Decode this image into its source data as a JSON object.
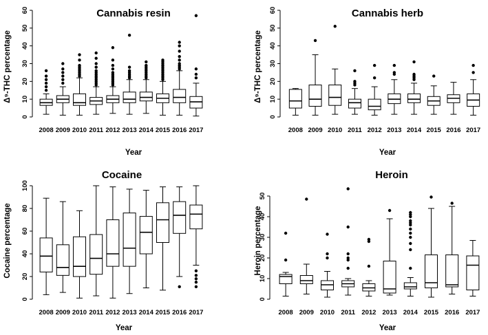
{
  "chart_data": [
    {
      "type": "box",
      "title": "Cannabis resin",
      "xlabel": "Year",
      "ylabel": "Δ⁹-THC percentage",
      "ylim": [
        0,
        60
      ],
      "yticks": [
        0,
        10,
        20,
        30,
        40,
        50,
        60
      ],
      "categories": [
        "2008",
        "2009",
        "2010",
        "2011",
        "2012",
        "2013",
        "2014",
        "2015",
        "2016",
        "2017"
      ],
      "boxes": [
        {
          "min": 1.5,
          "q1": 6.5,
          "median": 8,
          "q3": 10,
          "max": 13,
          "outliers": [
            15,
            17,
            19,
            21,
            23,
            26
          ]
        },
        {
          "min": 1,
          "q1": 8,
          "median": 10,
          "q3": 12,
          "max": 17,
          "outliers": [
            19,
            21,
            23,
            25,
            27,
            30
          ]
        },
        {
          "min": 1,
          "q1": 6.5,
          "median": 8,
          "q3": 13,
          "max": 22,
          "outliers": [
            23,
            24,
            25,
            26,
            27,
            28,
            29,
            32,
            35
          ]
        },
        {
          "min": 1.5,
          "q1": 7,
          "median": 9,
          "q3": 11,
          "max": 17,
          "outliers": [
            18,
            19,
            20,
            21,
            22,
            23,
            24,
            25,
            26,
            28,
            30,
            33,
            36
          ]
        },
        {
          "min": 2,
          "q1": 8,
          "median": 10,
          "q3": 12,
          "max": 17,
          "outliers": [
            18,
            19,
            20,
            21,
            22,
            23,
            24,
            25,
            27,
            29,
            32,
            39
          ]
        },
        {
          "min": 1.5,
          "q1": 8,
          "median": 10,
          "q3": 14,
          "max": 21,
          "outliers": [
            22,
            23,
            24,
            25,
            26,
            28,
            46
          ]
        },
        {
          "min": 2,
          "q1": 9,
          "median": 11,
          "q3": 14,
          "max": 21,
          "outliers": [
            22,
            23,
            24,
            25,
            26,
            27,
            28,
            29,
            31
          ]
        },
        {
          "min": 1,
          "q1": 8,
          "median": 10.5,
          "q3": 13,
          "max": 20,
          "outliers": [
            21,
            22,
            23,
            24,
            25,
            26,
            27,
            28,
            29,
            30,
            31,
            32
          ]
        },
        {
          "min": 1,
          "q1": 8,
          "median": 11,
          "q3": 15.5,
          "max": 26,
          "outliers": [
            27,
            28,
            29,
            30,
            32,
            34,
            37,
            40,
            42
          ]
        },
        {
          "min": 0.5,
          "q1": 5,
          "median": 8.5,
          "q3": 11.5,
          "max": 19,
          "outliers": [
            22,
            24,
            27,
            57
          ]
        }
      ]
    },
    {
      "type": "box",
      "title": "Cannabis herb",
      "xlabel": "Year",
      "ylabel": "Δ⁹-THC percentage",
      "ylim": [
        0,
        60
      ],
      "yticks": [
        0,
        10,
        20,
        30,
        40,
        50,
        60
      ],
      "categories": [
        "2008",
        "2009",
        "2010",
        "2011",
        "2012",
        "2013",
        "2014",
        "2015",
        "2016",
        "2017"
      ],
      "boxes": [
        {
          "min": 1,
          "q1": 5,
          "median": 9,
          "q3": 15.5,
          "max": 16,
          "outliers": []
        },
        {
          "min": 1,
          "q1": 6,
          "median": 10,
          "q3": 18,
          "max": 35,
          "outliers": [
            43
          ]
        },
        {
          "min": 1.5,
          "q1": 6.5,
          "median": 11,
          "q3": 18,
          "max": 27,
          "outliers": [
            51
          ]
        },
        {
          "min": 1.5,
          "q1": 5,
          "median": 8,
          "q3": 10,
          "max": 16,
          "outliers": [
            18,
            19,
            20,
            26
          ]
        },
        {
          "min": 1,
          "q1": 4,
          "median": 6,
          "q3": 10,
          "max": 17,
          "outliers": [
            22,
            29
          ]
        },
        {
          "min": 1.5,
          "q1": 7.5,
          "median": 10,
          "q3": 13,
          "max": 21,
          "outliers": [
            24,
            25,
            29
          ]
        },
        {
          "min": 1.5,
          "q1": 8,
          "median": 10,
          "q3": 13,
          "max": 19,
          "outliers": [
            21,
            22,
            23,
            24,
            31
          ]
        },
        {
          "min": 1.5,
          "q1": 6.5,
          "median": 9,
          "q3": 11.5,
          "max": 17.5,
          "outliers": [
            23
          ]
        },
        {
          "min": 1.5,
          "q1": 8,
          "median": 10.5,
          "q3": 12.5,
          "max": 19.5,
          "outliers": []
        },
        {
          "min": 1,
          "q1": 6,
          "median": 9.5,
          "q3": 13,
          "max": 21,
          "outliers": [
            25,
            29
          ]
        }
      ]
    },
    {
      "type": "box",
      "title": "Cocaine",
      "xlabel": "Year",
      "ylabel": "Cocaine percentage",
      "ylim": [
        0,
        100
      ],
      "yticks": [
        0,
        20,
        40,
        60,
        80,
        100
      ],
      "categories": [
        "2008",
        "2009",
        "2010",
        "2011",
        "2012",
        "2013",
        "2014",
        "2015",
        "2016",
        "2017"
      ],
      "boxes": [
        {
          "min": 4,
          "q1": 24,
          "median": 38,
          "q3": 54,
          "max": 89,
          "outliers": []
        },
        {
          "min": 6,
          "q1": 21,
          "median": 28,
          "q3": 48,
          "max": 86,
          "outliers": []
        },
        {
          "min": 1,
          "q1": 20,
          "median": 29,
          "q3": 55,
          "max": 78,
          "outliers": []
        },
        {
          "min": 3,
          "q1": 22,
          "median": 36,
          "q3": 57,
          "max": 100,
          "outliers": []
        },
        {
          "min": 1,
          "q1": 29,
          "median": 40,
          "q3": 70,
          "max": 99,
          "outliers": []
        },
        {
          "min": 5,
          "q1": 29,
          "median": 45,
          "q3": 76,
          "max": 97,
          "outliers": []
        },
        {
          "min": 10,
          "q1": 40,
          "median": 59,
          "q3": 73,
          "max": 96,
          "outliers": []
        },
        {
          "min": 8,
          "q1": 50,
          "median": 70,
          "q3": 85,
          "max": 99,
          "outliers": []
        },
        {
          "min": 20,
          "q1": 58,
          "median": 74,
          "q3": 86,
          "max": 99,
          "outliers": [
            11
          ]
        },
        {
          "min": 30,
          "q1": 62,
          "median": 75,
          "q3": 83,
          "max": 100,
          "outliers": [
            11,
            15,
            18,
            21,
            25
          ]
        }
      ]
    },
    {
      "type": "box",
      "title": "Heroin",
      "xlabel": "Year",
      "ylabel": "Heroin percentage",
      "ylim": [
        0,
        55
      ],
      "yticks": [
        0,
        10,
        20,
        30,
        40,
        50
      ],
      "categories": [
        "2008",
        "2009",
        "2010",
        "2011",
        "2012",
        "2013",
        "2014",
        "2015",
        "2016",
        "2017"
      ],
      "boxes": [
        {
          "min": 1.5,
          "q1": 7.5,
          "median": 11,
          "q3": 12,
          "max": 13,
          "outliers": [
            19,
            32
          ]
        },
        {
          "min": 2.5,
          "q1": 7.5,
          "median": 9,
          "q3": 11.5,
          "max": 17,
          "outliers": [
            48.5
          ]
        },
        {
          "min": 1,
          "q1": 4.5,
          "median": 7,
          "q3": 9,
          "max": 13.5,
          "outliers": [
            20,
            22,
            31.5
          ]
        },
        {
          "min": 2,
          "q1": 6,
          "median": 7.5,
          "q3": 9,
          "max": 10,
          "outliers": [
            15,
            19,
            20,
            22,
            35,
            53.5
          ]
        },
        {
          "min": 1.5,
          "q1": 4,
          "median": 5.5,
          "q3": 7.5,
          "max": 9,
          "outliers": [
            16,
            28,
            29
          ]
        },
        {
          "min": 2,
          "q1": 3,
          "median": 5,
          "q3": 18.5,
          "max": 39,
          "outliers": [
            43
          ]
        },
        {
          "min": 1.5,
          "q1": 5,
          "median": 6,
          "q3": 8,
          "max": 10.5,
          "outliers": [
            15,
            24,
            27,
            30,
            32,
            34,
            36,
            37,
            38,
            40,
            41,
            42
          ]
        },
        {
          "min": 1,
          "q1": 5.5,
          "median": 8,
          "q3": 21.5,
          "max": 44,
          "outliers": [
            49.5
          ]
        },
        {
          "min": 2.5,
          "q1": 6,
          "median": 7,
          "q3": 21.5,
          "max": 45,
          "outliers": [
            46.5
          ]
        },
        {
          "min": 1.5,
          "q1": 4.5,
          "median": 16.5,
          "q3": 21,
          "max": 28.5,
          "outliers": []
        }
      ]
    }
  ]
}
